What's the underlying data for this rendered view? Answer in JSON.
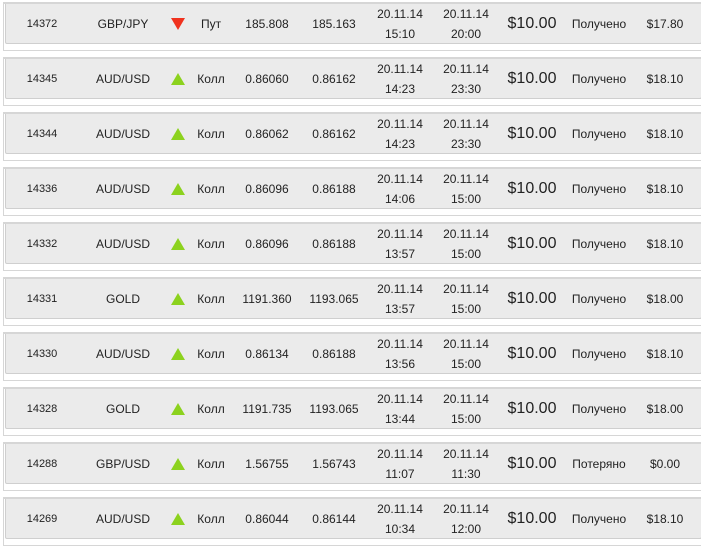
{
  "colors": {
    "up": "#8cd21e",
    "down": "#f0321e",
    "row_bg": "#ebebeb"
  },
  "trades": [
    {
      "id": "14372",
      "pair": "GBP/JPY",
      "direction": "down",
      "type": "Пут",
      "open": "185.808",
      "close": "185.163",
      "start_date": "20.11.14",
      "start_time": "15:10",
      "end_date": "20.11.14",
      "end_time": "20:00",
      "amount": "$10.00",
      "status": "Получено",
      "payout": "$17.80"
    },
    {
      "id": "14345",
      "pair": "AUD/USD",
      "direction": "up",
      "type": "Колл",
      "open": "0.86060",
      "close": "0.86162",
      "start_date": "20.11.14",
      "start_time": "14:23",
      "end_date": "20.11.14",
      "end_time": "23:30",
      "amount": "$10.00",
      "status": "Получено",
      "payout": "$18.10"
    },
    {
      "id": "14344",
      "pair": "AUD/USD",
      "direction": "up",
      "type": "Колл",
      "open": "0.86062",
      "close": "0.86162",
      "start_date": "20.11.14",
      "start_time": "14:23",
      "end_date": "20.11.14",
      "end_time": "23:30",
      "amount": "$10.00",
      "status": "Получено",
      "payout": "$18.10"
    },
    {
      "id": "14336",
      "pair": "AUD/USD",
      "direction": "up",
      "type": "Колл",
      "open": "0.86096",
      "close": "0.86188",
      "start_date": "20.11.14",
      "start_time": "14:06",
      "end_date": "20.11.14",
      "end_time": "15:00",
      "amount": "$10.00",
      "status": "Получено",
      "payout": "$18.10"
    },
    {
      "id": "14332",
      "pair": "AUD/USD",
      "direction": "up",
      "type": "Колл",
      "open": "0.86096",
      "close": "0.86188",
      "start_date": "20.11.14",
      "start_time": "13:57",
      "end_date": "20.11.14",
      "end_time": "15:00",
      "amount": "$10.00",
      "status": "Получено",
      "payout": "$18.10"
    },
    {
      "id": "14331",
      "pair": "GOLD",
      "direction": "up",
      "type": "Колл",
      "open": "1191.360",
      "close": "1193.065",
      "start_date": "20.11.14",
      "start_time": "13:57",
      "end_date": "20.11.14",
      "end_time": "15:00",
      "amount": "$10.00",
      "status": "Получено",
      "payout": "$18.00"
    },
    {
      "id": "14330",
      "pair": "AUD/USD",
      "direction": "up",
      "type": "Колл",
      "open": "0.86134",
      "close": "0.86188",
      "start_date": "20.11.14",
      "start_time": "13:56",
      "end_date": "20.11.14",
      "end_time": "15:00",
      "amount": "$10.00",
      "status": "Получено",
      "payout": "$18.10"
    },
    {
      "id": "14328",
      "pair": "GOLD",
      "direction": "up",
      "type": "Колл",
      "open": "1191.735",
      "close": "1193.065",
      "start_date": "20.11.14",
      "start_time": "13:44",
      "end_date": "20.11.14",
      "end_time": "15:00",
      "amount": "$10.00",
      "status": "Получено",
      "payout": "$18.00"
    },
    {
      "id": "14288",
      "pair": "GBP/USD",
      "direction": "up",
      "type": "Колл",
      "open": "1.56755",
      "close": "1.56743",
      "start_date": "20.11.14",
      "start_time": "11:07",
      "end_date": "20.11.14",
      "end_time": "11:30",
      "amount": "$10.00",
      "status": "Потеряно",
      "payout": "$0.00"
    },
    {
      "id": "14269",
      "pair": "AUD/USD",
      "direction": "up",
      "type": "Колл",
      "open": "0.86044",
      "close": "0.86144",
      "start_date": "20.11.14",
      "start_time": "10:34",
      "end_date": "20.11.14",
      "end_time": "12:00",
      "amount": "$10.00",
      "status": "Получено",
      "payout": "$18.10"
    }
  ]
}
